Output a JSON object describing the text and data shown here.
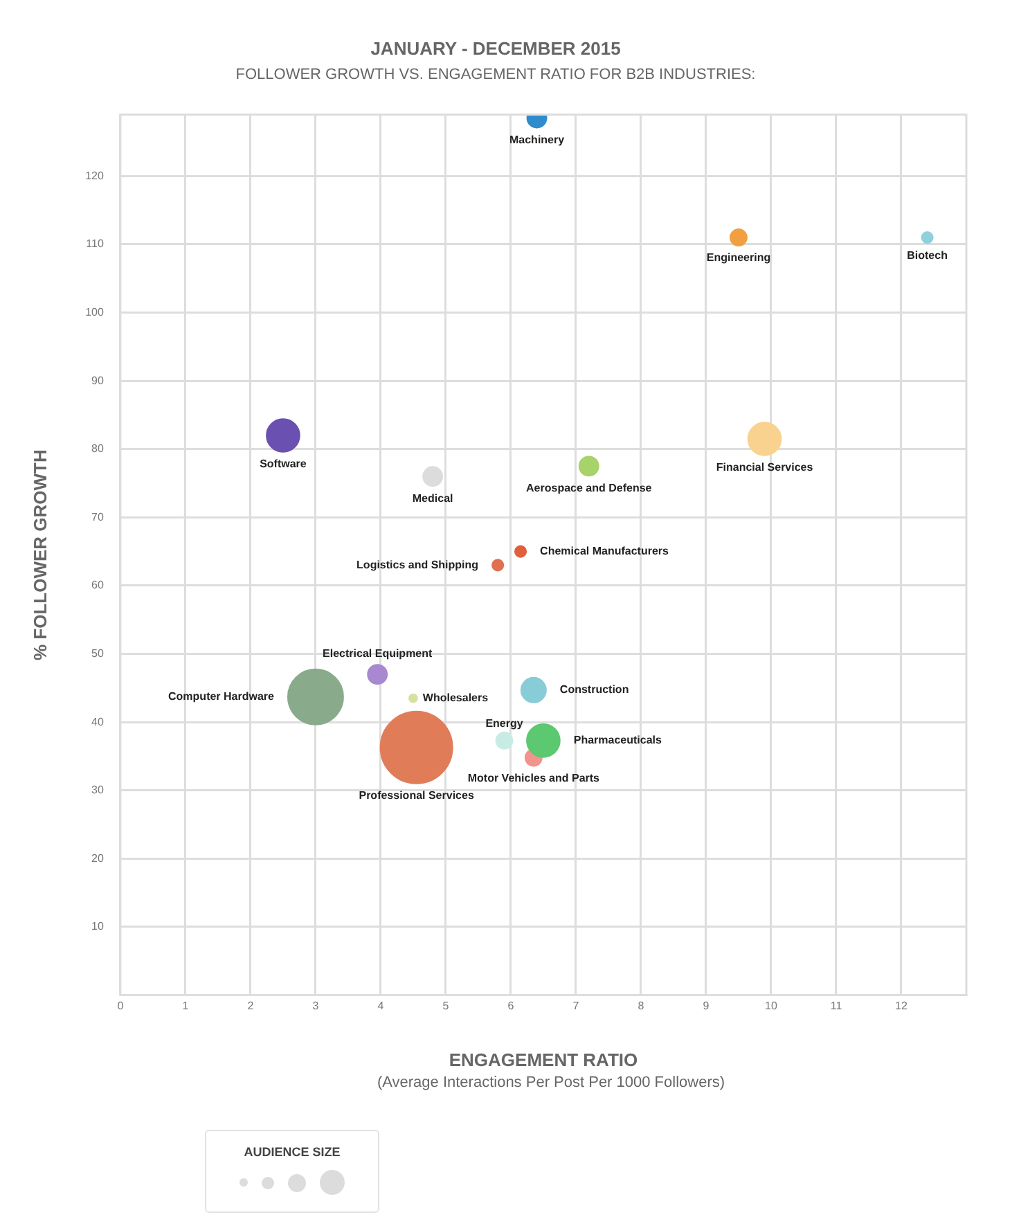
{
  "chart_data": {
    "type": "bubble",
    "title": "JANUARY - DECEMBER 2015",
    "subtitle": "FOLLOWER GROWTH VS. ENGAGEMENT RATIO FOR B2B INDUSTRIES:",
    "xlabel": "ENGAGEMENT RATIO",
    "ylabel": "% FOLLOWER GROWTH",
    "legend_title": "AUDIENCE SIZE",
    "annotations": [
      "(Average Interactions Per Post Per 1000 Followers)"
    ],
    "xlim": [
      0,
      13
    ],
    "ylim": [
      0,
      129
    ],
    "xticks": [
      0,
      1,
      2,
      3,
      4,
      5,
      6,
      7,
      8,
      9,
      10,
      11,
      12
    ],
    "yticks": [
      10,
      20,
      30,
      40,
      50,
      60,
      70,
      80,
      90,
      100,
      110,
      120
    ],
    "grid": true,
    "series": [
      {
        "name": "Machinery",
        "color": "#2e8bcc",
        "x": [
          6.4
        ],
        "values": [
          128.5
        ],
        "sizes": [
          0.072
        ]
      },
      {
        "name": "Engineering",
        "color": "#f0a040",
        "x": [
          9.5
        ],
        "values": [
          111
        ],
        "sizes": [
          0.053
        ]
      },
      {
        "name": "Biotech",
        "color": "#8fd0dc",
        "x": [
          12.4
        ],
        "values": [
          111
        ],
        "sizes": [
          0.024
        ]
      },
      {
        "name": "Software",
        "color": "#6a50b0",
        "x": [
          2.5
        ],
        "values": [
          82
        ],
        "sizes": [
          0.21
        ]
      },
      {
        "name": "Medical",
        "color": "#dcdcdc",
        "x": [
          4.8
        ],
        "values": [
          76
        ],
        "sizes": [
          0.072
        ]
      },
      {
        "name": "Aerospace and Defense",
        "color": "#a8d26a",
        "x": [
          7.2
        ],
        "values": [
          77.5
        ],
        "sizes": [
          0.072
        ]
      },
      {
        "name": "Financial Services",
        "color": "#f8d28e",
        "x": [
          9.9
        ],
        "values": [
          81.5
        ],
        "sizes": [
          0.21
        ]
      },
      {
        "name": "Chemical Manufacturers",
        "color": "#e0603c",
        "x": [
          6.15
        ],
        "values": [
          65
        ],
        "sizes": [
          0.024
        ]
      },
      {
        "name": "Logistics and Shipping",
        "color": "#e07050",
        "x": [
          5.8
        ],
        "values": [
          63
        ],
        "sizes": [
          0.024
        ]
      },
      {
        "name": "Electrical Equipment",
        "color": "#a888d0",
        "x": [
          3.95
        ],
        "values": [
          47
        ],
        "sizes": [
          0.072
        ]
      },
      {
        "name": "Wholesalers",
        "color": "#d8e0a0",
        "x": [
          4.5
        ],
        "values": [
          43.5
        ],
        "sizes": [
          0.013
        ]
      },
      {
        "name": "Computer Hardware",
        "color": "#8aaa8c",
        "x": [
          3
        ],
        "values": [
          43.7
        ],
        "sizes": [
          0.59
        ]
      },
      {
        "name": "Construction",
        "color": "#88ccd8",
        "x": [
          6.35
        ],
        "values": [
          44.7
        ],
        "sizes": [
          0.12
        ]
      },
      {
        "name": "Professional Services",
        "color": "#e07d58",
        "x": [
          4.55
        ],
        "values": [
          36.3
        ],
        "sizes": [
          1
        ]
      },
      {
        "name": "Energy",
        "color": "#c8ece4",
        "x": [
          5.9
        ],
        "values": [
          37.3
        ],
        "sizes": [
          0.053
        ]
      },
      {
        "name": "Pharmaceuticals",
        "color": "#5cc870",
        "x": [
          6.5
        ],
        "values": [
          37.3
        ],
        "sizes": [
          0.21
        ]
      },
      {
        "name": "Motor Vehicles and Parts",
        "color": "#f0948c",
        "x": [
          6.35
        ],
        "values": [
          34.8
        ],
        "sizes": [
          0.053
        ]
      }
    ]
  }
}
